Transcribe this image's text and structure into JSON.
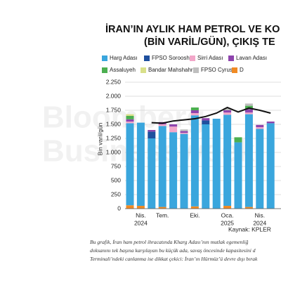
{
  "chart_data": {
    "type": "bar",
    "stacked": true,
    "title_lines": [
      "İRAN’IN AYLIK HAM PETROL VE KO",
      "(BİN VARİL/GÜN), ÇIKIŞ TE"
    ],
    "watermark": [
      "Bloomberg",
      "Businessweek"
    ],
    "y_label": "Bin varil/gün",
    "categories": [
      null,
      "Nis.",
      null,
      "Tem.",
      null,
      null,
      "Eki.",
      null,
      null,
      "Oca.",
      null,
      null,
      "Nis.",
      null
    ],
    "category_years": [
      null,
      "2024",
      null,
      null,
      null,
      null,
      null,
      null,
      null,
      "2025",
      null,
      null,
      "2024",
      null
    ],
    "series": [
      {
        "name": "D",
        "color": "#f08a24",
        "values": [
          60,
          50,
          0,
          30,
          0,
          0,
          40,
          0,
          0,
          50,
          0,
          30,
          0,
          0
        ]
      },
      {
        "name": "Harg Adası",
        "color": "#3aa6dd",
        "values": [
          1460,
          1480,
          1250,
          1440,
          1360,
          1330,
          1620,
          1500,
          1600,
          1620,
          1180,
          1650,
          1420,
          1520
        ]
      },
      {
        "name": "FPSO Soroosh",
        "color": "#1f4f9e",
        "values": [
          0,
          0,
          120,
          0,
          0,
          0,
          0,
          70,
          0,
          0,
          0,
          0,
          0,
          0
        ]
      },
      {
        "name": "Sirri Adası",
        "color": "#f2a7c9",
        "values": [
          30,
          0,
          0,
          30,
          100,
          20,
          40,
          0,
          0,
          40,
          0,
          30,
          30,
          0
        ]
      },
      {
        "name": "Lavan Adası",
        "color": "#8e44ad",
        "values": [
          40,
          0,
          30,
          40,
          40,
          30,
          50,
          40,
          0,
          40,
          0,
          60,
          40,
          30
        ]
      },
      {
        "name": "Assaluyeh",
        "color": "#4caf50",
        "values": [
          60,
          0,
          0,
          0,
          0,
          0,
          50,
          0,
          0,
          0,
          90,
          60,
          0,
          0
        ]
      },
      {
        "name": "Bandar Mahshahr",
        "color": "#d9e08a",
        "values": [
          30,
          0,
          0,
          0,
          0,
          0,
          0,
          0,
          0,
          0,
          0,
          0,
          0,
          0
        ]
      },
      {
        "name": "FPSO Cyrus",
        "color": "#bfbfbf",
        "values": [
          0,
          0,
          0,
          0,
          0,
          30,
          0,
          0,
          0,
          40,
          0,
          40,
          0,
          0
        ]
      }
    ],
    "line": {
      "color": "#111111",
      "values": [
        null,
        null,
        1530,
        1520,
        1560,
        1580,
        1600,
        1640,
        1700,
        1800,
        1720,
        1790,
        1750,
        1700
      ]
    },
    "ylim": [
      0,
      2250
    ],
    "yticks": [
      0,
      {
        "value": 250,
        "label": "250"
      },
      {
        "value": 500,
        "label": "500"
      },
      {
        "value": 750,
        "label": "750"
      },
      {
        "value": 1000,
        "label": "1.000"
      },
      {
        "value": 1250,
        "label": "1.250"
      },
      {
        "value": 1500,
        "label": "1.500"
      },
      {
        "value": 1750,
        "label": "1.750"
      },
      {
        "value": 2000,
        "label": "2.000"
      },
      {
        "value": 2250,
        "label": "2.250"
      }
    ],
    "grid": true,
    "source": "Kaynak: KPLER",
    "caption": [
      "Bu grafik, İran ham petrol ihracatında Kharg Adası’nın mutlak egemenliğ",
      "doksanını tek başına karşılayan bu küçük ada, savaş öncesinde kapasitesini d",
      "Terminali’ndeki canlanma ise dikkat çekici: İran’ın Hürmüz’ü devre dışı bırak"
    ]
  }
}
